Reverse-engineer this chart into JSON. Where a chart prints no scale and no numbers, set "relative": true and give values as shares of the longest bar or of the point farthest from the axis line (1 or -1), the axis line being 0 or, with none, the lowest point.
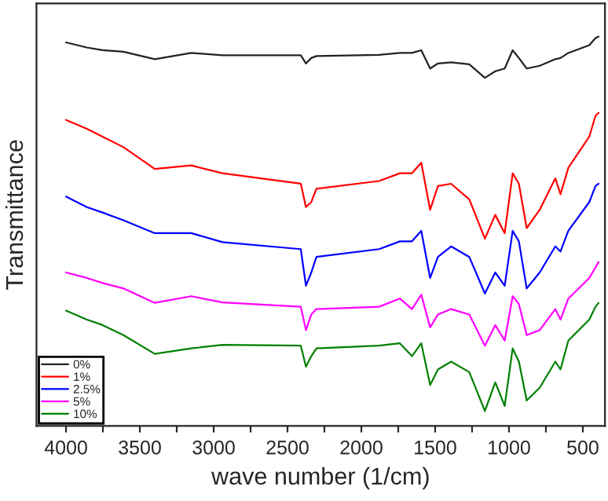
{
  "chart_data": {
    "type": "line",
    "xlabel": "wave number (1/cm)",
    "ylabel": "Transmittance",
    "relative": true,
    "tick_labels": "x",
    "grid": false,
    "legend": "bottom left",
    "marker": "none",
    "line_style": "solid",
    "x": [
      4000,
      3859,
      3753,
      3611,
      3399,
      3152,
      2940,
      2410,
      2375,
      2339,
      2304,
      1880,
      1739,
      1657,
      1594,
      1534,
      1481,
      1392,
      1269,
      1163,
      1093,
      1029,
      975,
      933,
      880,
      792,
      686,
      651,
      598,
      456,
      414,
      393
    ],
    "xlim": [
      4200,
      350
    ],
    "xticks": [
      4000,
      {
        "value": 3750,
        "label": null
      },
      3500,
      {
        "value": 3250,
        "label": null
      },
      3000,
      {
        "value": 2750,
        "label": null
      },
      2500,
      {
        "value": 2250,
        "label": null
      },
      2000,
      {
        "value": 1750,
        "label": null
      },
      1500,
      {
        "value": 1250,
        "label": null
      },
      1000,
      {
        "value": 750,
        "label": null
      },
      500
    ],
    "series": [
      {
        "name": "0%",
        "color": "#222222",
        "values": [
          0.985,
          0.972,
          0.965,
          0.961,
          0.942,
          0.958,
          0.952,
          0.952,
          0.931,
          0.945,
          0.95,
          0.953,
          0.958,
          0.958,
          0.965,
          0.918,
          0.931,
          0.934,
          0.929,
          0.894,
          0.911,
          0.918,
          0.965,
          0.945,
          0.918,
          0.925,
          0.942,
          0.945,
          0.958,
          0.978,
          0.996,
          1.0
        ]
      },
      {
        "name": "1%",
        "color": "#ff0000",
        "values": [
          0.786,
          0.763,
          0.743,
          0.716,
          0.66,
          0.669,
          0.649,
          0.622,
          0.562,
          0.575,
          0.609,
          0.629,
          0.649,
          0.649,
          0.676,
          0.555,
          0.616,
          0.622,
          0.582,
          0.481,
          0.542,
          0.495,
          0.649,
          0.622,
          0.508,
          0.555,
          0.636,
          0.595,
          0.663,
          0.743,
          0.797,
          0.804
        ]
      },
      {
        "name": "2.5%",
        "color": "#0000ff",
        "values": [
          0.589,
          0.562,
          0.548,
          0.528,
          0.495,
          0.495,
          0.472,
          0.454,
          0.36,
          0.394,
          0.434,
          0.454,
          0.474,
          0.474,
          0.501,
          0.38,
          0.434,
          0.461,
          0.434,
          0.34,
          0.394,
          0.36,
          0.501,
          0.474,
          0.353,
          0.394,
          0.461,
          0.448,
          0.501,
          0.575,
          0.616,
          0.622
        ]
      },
      {
        "name": "5%",
        "color": "#ff00ff",
        "values": [
          0.394,
          0.38,
          0.367,
          0.353,
          0.316,
          0.333,
          0.317,
          0.306,
          0.246,
          0.286,
          0.3,
          0.306,
          0.327,
          0.3,
          0.337,
          0.253,
          0.286,
          0.3,
          0.286,
          0.206,
          0.259,
          0.219,
          0.333,
          0.313,
          0.233,
          0.246,
          0.3,
          0.273,
          0.327,
          0.38,
          0.407,
          0.421
        ]
      },
      {
        "name": "10%",
        "color": "#008000",
        "values": [
          0.296,
          0.273,
          0.259,
          0.233,
          0.185,
          0.199,
          0.208,
          0.206,
          0.152,
          0.179,
          0.199,
          0.206,
          0.212,
          0.179,
          0.212,
          0.105,
          0.145,
          0.165,
          0.138,
          0.038,
          0.112,
          0.051,
          0.199,
          0.165,
          0.065,
          0.098,
          0.165,
          0.145,
          0.219,
          0.273,
          0.306,
          0.316
        ]
      }
    ]
  }
}
